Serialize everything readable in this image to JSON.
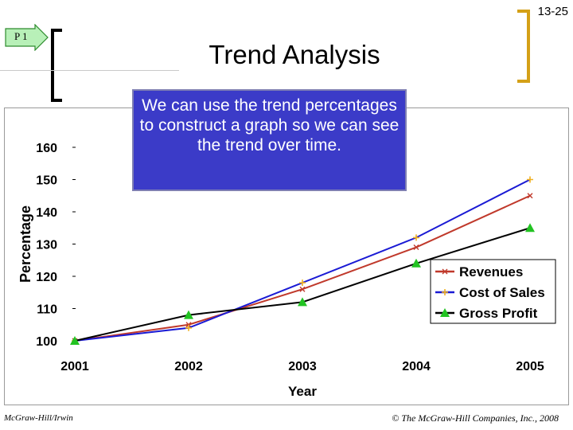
{
  "slide": {
    "number": "13-25",
    "objective_tag": "P 1",
    "title": "Trend Analysis",
    "callout": "We can use the trend percentages to construct a graph so we can see the trend over time.",
    "footer_left": "McGraw-Hill/Irwin",
    "footer_right": "© The McGraw-Hill Companies, Inc., 2008"
  },
  "colors": {
    "revenues": "#c0392b",
    "cost_of_sales": "#1a1ad4",
    "gross_profit": "#000000",
    "gross_profit_marker": "#22c322",
    "cost_marker": "#f0b020",
    "callout_bg": "#3b3bc8",
    "tag_fill": "#b8f0b8",
    "tag_border": "#2e8b2e"
  },
  "chart_data": {
    "type": "line",
    "x": [
      "2001",
      "2002",
      "2003",
      "2004",
      "2005"
    ],
    "series": [
      {
        "name": "Revenues",
        "values": [
          100,
          105,
          116,
          129,
          145
        ]
      },
      {
        "name": "Cost of Sales",
        "values": [
          100,
          104,
          118,
          132,
          150
        ]
      },
      {
        "name": "Gross Profit",
        "values": [
          100,
          108,
          112,
          124,
          135
        ]
      }
    ],
    "xlabel": "Year",
    "ylabel": "Percentage",
    "ylim": [
      100,
      160
    ],
    "yticks": [
      100,
      110,
      120,
      130,
      140,
      150,
      160
    ],
    "grid": false,
    "legend": "bottom-right"
  }
}
